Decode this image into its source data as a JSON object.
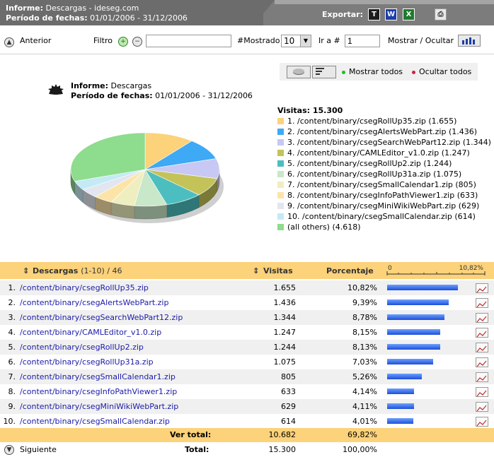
{
  "header": {
    "line1_label": "Informe:",
    "line1_value": "Descargas - ideseg.com",
    "line2_label": "Período de fechas:",
    "line2_value": "01/01/2006 - 31/12/2006",
    "export_label": "Exportar:",
    "export_icons": [
      {
        "name": "text-export-icon",
        "glyph": "T"
      },
      {
        "name": "word-export-icon",
        "glyph": "W"
      },
      {
        "name": "excel-export-icon",
        "glyph": "X"
      },
      {
        "name": "print-icon",
        "glyph": "⎙"
      }
    ]
  },
  "toolbar": {
    "prev_label": "Anterior",
    "filter_label": "Filtro",
    "filter_value": "",
    "shown_label": "#Mostrado",
    "shown_value": "10",
    "goto_label": "Ir a #",
    "goto_value": "1",
    "toggle_label": "Mostrar / Ocultar"
  },
  "chart_panel": {
    "show_all": "Mostrar todos",
    "hide_all": "Ocultar todos",
    "report_label": "Informe:",
    "report_value": "Descargas",
    "period_label": "Período de fechas:",
    "period_value": "01/01/2006 - 31/12/2006",
    "legend_title": "Visitas: 15.300",
    "colors": {
      "show_all_dot": "#22bb22",
      "hide_all_dot": "#cc2244"
    }
  },
  "chart_data": {
    "type": "pie",
    "total": 15300,
    "slices": [
      {
        "label": "1. /content/binary/csegRollUp35.zip (1.655)",
        "value": 1655,
        "color": "#fcd27a"
      },
      {
        "label": "2. /content/binary/csegAlertsWebPart.zip (1.436)",
        "value": 1436,
        "color": "#3ea9f5"
      },
      {
        "label": "3. /content/binary/csegSearchWebPart12.zip (1.344)",
        "value": 1344,
        "color": "#c8c8f5"
      },
      {
        "label": "4. /content/binary/CAMLEditor_v1.0.zip (1.247)",
        "value": 1247,
        "color": "#c3c35a"
      },
      {
        "label": "5. /content/binary/csegRollUp2.zip (1.244)",
        "value": 1244,
        "color": "#4cbec0"
      },
      {
        "label": "6. /content/binary/csegRollUp31a.zip (1.075)",
        "value": 1075,
        "color": "#c9e7c9"
      },
      {
        "label": "7. /content/binary/csegSmallCalendar1.zip (805)",
        "value": 805,
        "color": "#eeeec0"
      },
      {
        "label": "8. /content/binary/csegInfoPathViewer1.zip (633)",
        "value": 633,
        "color": "#fce4a8"
      },
      {
        "label": "9. /content/binary/csegMiniWikiWebPart.zip (629)",
        "value": 629,
        "color": "#e2e6ef"
      },
      {
        "label": "10. /content/binary/csegSmallCalendar.zip (614)",
        "value": 614,
        "color": "#c4eaf5"
      },
      {
        "label": "(all others) (4.618)",
        "value": 4618,
        "color": "#8edc8e"
      }
    ]
  },
  "table": {
    "col_name": "Descargas",
    "col_range": "(1-10) / 46",
    "col_visits": "Visitas",
    "col_pct": "Porcentaje",
    "scale_min": "0",
    "scale_max": "10,82%",
    "rows": [
      {
        "idx": "1.",
        "name": "/content/binary/csegRollUp35.zip",
        "visits": "1.655",
        "pct": "10,82%",
        "frac": 1.0
      },
      {
        "idx": "2.",
        "name": "/content/binary/csegAlertsWebPart.zip",
        "visits": "1.436",
        "pct": "9,39%",
        "frac": 0.868
      },
      {
        "idx": "3.",
        "name": "/content/binary/csegSearchWebPart12.zip",
        "visits": "1.344",
        "pct": "8,78%",
        "frac": 0.812
      },
      {
        "idx": "4.",
        "name": "/content/binary/CAMLEditor_v1.0.zip",
        "visits": "1.247",
        "pct": "8,15%",
        "frac": 0.753
      },
      {
        "idx": "5.",
        "name": "/content/binary/csegRollUp2.zip",
        "visits": "1.244",
        "pct": "8,13%",
        "frac": 0.752
      },
      {
        "idx": "6.",
        "name": "/content/binary/csegRollUp31a.zip",
        "visits": "1.075",
        "pct": "7,03%",
        "frac": 0.65
      },
      {
        "idx": "7.",
        "name": "/content/binary/csegSmallCalendar1.zip",
        "visits": "805",
        "pct": "5,26%",
        "frac": 0.486
      },
      {
        "idx": "8.",
        "name": "/content/binary/csegInfoPathViewer1.zip",
        "visits": "633",
        "pct": "4,14%",
        "frac": 0.383
      },
      {
        "idx": "9.",
        "name": "/content/binary/csegMiniWikiWebPart.zip",
        "visits": "629",
        "pct": "4,11%",
        "frac": 0.38
      },
      {
        "idx": "10.",
        "name": "/content/binary/csegSmallCalendar.zip",
        "visits": "614",
        "pct": "4,01%",
        "frac": 0.371
      }
    ],
    "subtotal_label": "Ver total:",
    "subtotal_visits": "10.682",
    "subtotal_pct": "69,82%",
    "total_label": "Total:",
    "total_visits": "15.300",
    "total_pct": "100,00%",
    "next_label": "Siguiente"
  }
}
